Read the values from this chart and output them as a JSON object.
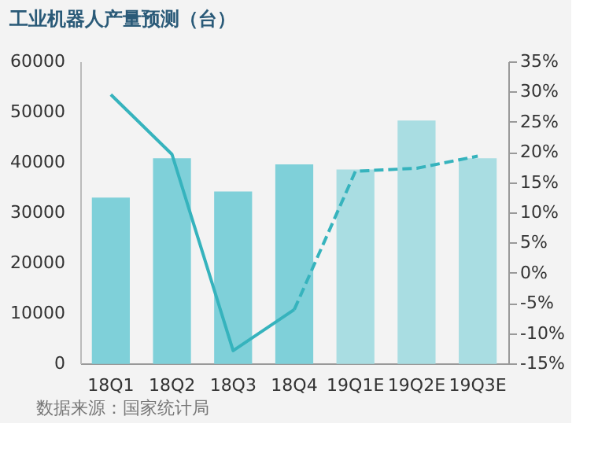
{
  "chart_data": {
    "type": "bar",
    "title": "工业机器人产量预测（台）",
    "categories": [
      "18Q1",
      "18Q2",
      "18Q3",
      "18Q4",
      "19Q1E",
      "19Q2E",
      "19Q3E"
    ],
    "series": [
      {
        "colors": [
          "#7fd0d9",
          "#7fd0d9",
          "#7fd0d9",
          "#7fd0d9",
          "#a9dde2",
          "#a9dde2",
          "#a9dde2"
        ],
        "values": [
          32800,
          40600,
          34000,
          39400,
          38400,
          48100,
          40600
        ]
      },
      {
        "type": "line",
        "axis": "y2",
        "color": "#36b3bd",
        "line_style": "solid",
        "values": [
          29.5,
          19.6,
          -12.9,
          -6.1,
          null,
          null,
          null
        ]
      },
      {
        "type": "line",
        "axis": "y2",
        "color": "#36b3bd",
        "line_style": "dashed",
        "values": [
          null,
          null,
          null,
          -6.1,
          16.8,
          17.3,
          19.3
        ]
      }
    ],
    "ylim": [
      0,
      60000
    ],
    "yticks": [
      0,
      10000,
      20000,
      30000,
      40000,
      50000,
      60000
    ],
    "y2lim": [
      -15,
      35
    ],
    "y2ticks": [
      {
        "value": -15,
        "label": "-15%"
      },
      {
        "value": -10,
        "label": "-10%"
      },
      {
        "value": -5,
        "label": "-5%"
      },
      {
        "value": 0,
        "label": "0%"
      },
      {
        "value": 5,
        "label": "5%"
      },
      {
        "value": 10,
        "label": "10%"
      },
      {
        "value": 15,
        "label": "15%"
      },
      {
        "value": 20,
        "label": "20%"
      },
      {
        "value": 25,
        "label": "25%"
      },
      {
        "value": 30,
        "label": "30%"
      },
      {
        "value": 35,
        "label": "35%"
      }
    ],
    "grid": false,
    "marker": "none",
    "annotations": [
      "数据来源：国家统计局"
    ]
  }
}
